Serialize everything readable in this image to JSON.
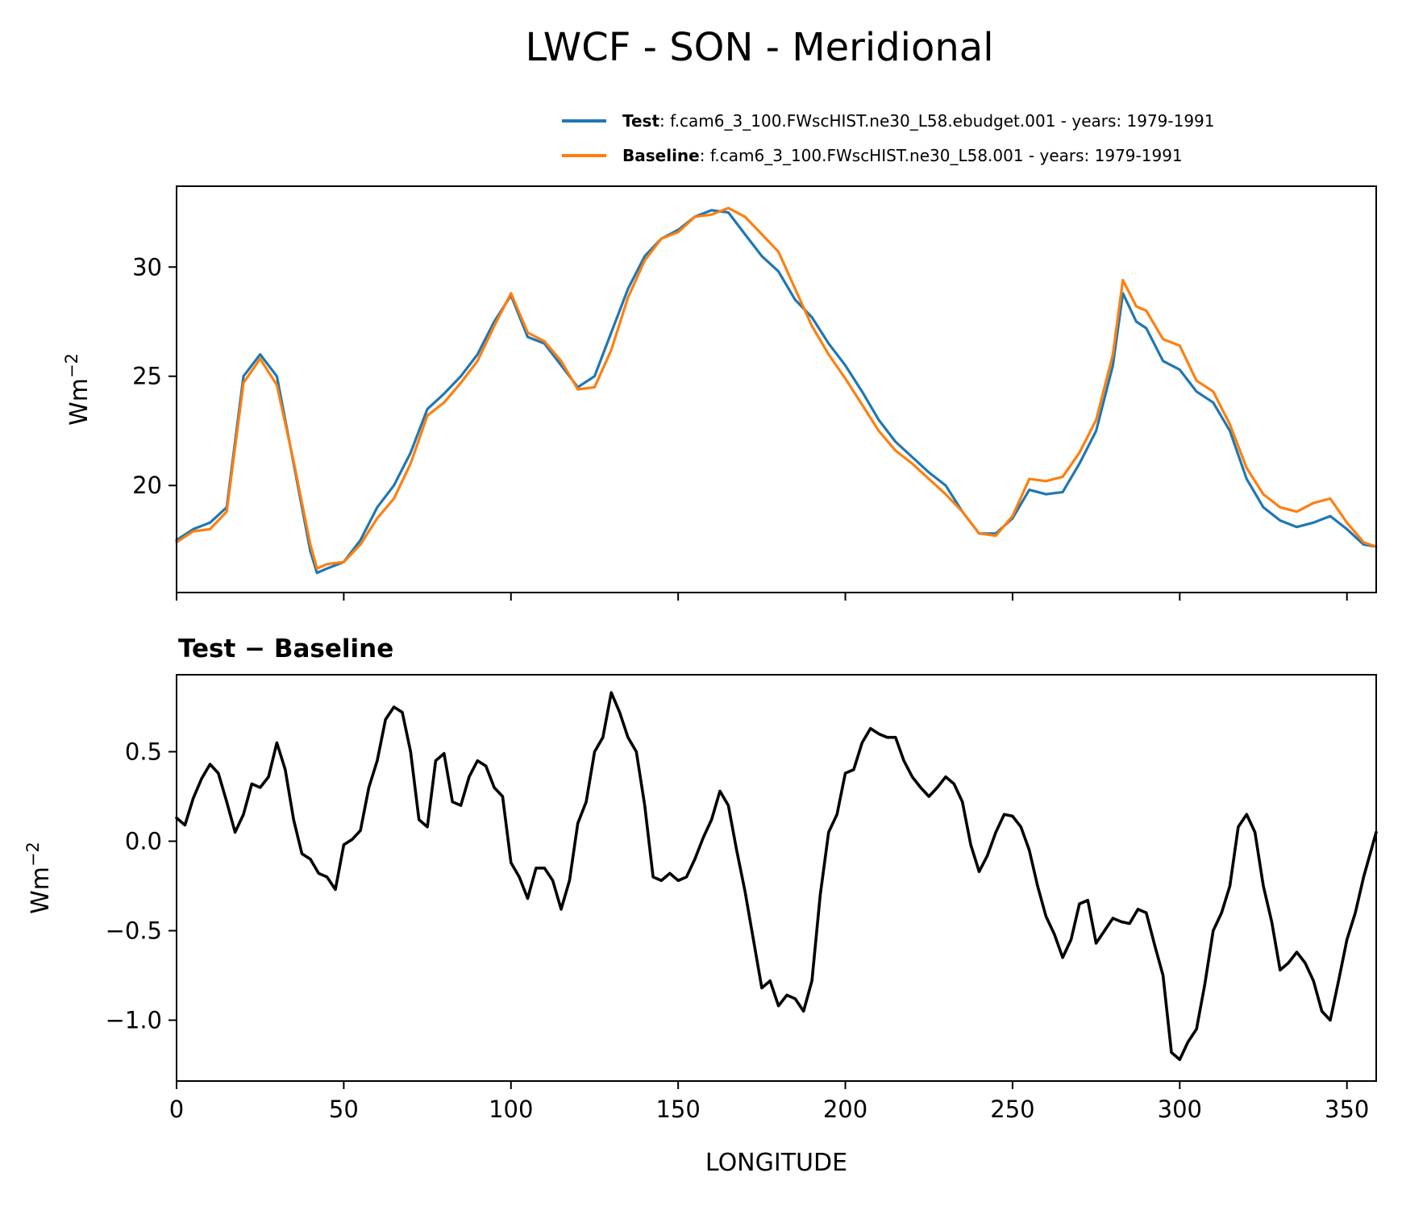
{
  "chart_data": [
    {
      "type": "line",
      "title": "LWCF - SON - Meridional",
      "xlabel": "",
      "ylabel": "Wm^-2",
      "xlim": [
        0,
        358.75
      ],
      "ylim": [
        15.1,
        33.7
      ],
      "yticks": [
        20,
        25,
        30
      ],
      "ytick_labels": [
        "20",
        "25",
        "30"
      ],
      "xticks": [
        0,
        50,
        100,
        150,
        200,
        250,
        300,
        350
      ],
      "xtick_labels_visible": false,
      "grid": false,
      "legend": {
        "placement": "top-right (above axes)",
        "entries": [
          {
            "name": "Test",
            "description": ": f.cam6_3_100.FWscHIST.ne30_L58.ebudget.001 - years: 1979-1991",
            "color": "#1f77b4"
          },
          {
            "name": "Baseline",
            "description": ": f.cam6_3_100.FWscHIST.ne30_L58.001 - years: 1979-1991",
            "color": "#ff7f0e"
          }
        ]
      },
      "x": [
        0,
        5,
        10,
        15,
        20,
        25,
        30,
        35,
        40,
        42,
        45,
        50,
        55,
        60,
        65,
        70,
        75,
        80,
        85,
        90,
        95,
        100,
        105,
        110,
        115,
        120,
        125,
        130,
        135,
        140,
        145,
        150,
        155,
        160,
        165,
        170,
        175,
        180,
        185,
        190,
        195,
        200,
        205,
        210,
        215,
        220,
        225,
        230,
        235,
        240,
        245,
        250,
        255,
        260,
        265,
        270,
        275,
        280,
        283,
        287,
        290,
        295,
        300,
        305,
        310,
        315,
        320,
        325,
        330,
        335,
        340,
        345,
        350,
        355,
        358.75
      ],
      "series": [
        {
          "name": "Test",
          "color": "#1f77b4",
          "values": [
            17.5,
            18.0,
            18.3,
            19.0,
            25.0,
            26.0,
            25.0,
            21.0,
            17.0,
            16.0,
            16.2,
            16.5,
            17.5,
            19.0,
            20.0,
            21.5,
            23.5,
            24.2,
            25.0,
            26.0,
            27.5,
            28.7,
            26.8,
            26.5,
            25.5,
            24.5,
            25.0,
            27.0,
            29.0,
            30.5,
            31.3,
            31.7,
            32.3,
            32.6,
            32.5,
            31.5,
            30.5,
            29.8,
            28.5,
            27.7,
            26.5,
            25.5,
            24.3,
            23.0,
            22.0,
            21.3,
            20.6,
            20.0,
            18.8,
            17.8,
            17.8,
            18.5,
            19.8,
            19.6,
            19.7,
            21.0,
            22.5,
            25.5,
            28.8,
            27.5,
            27.2,
            25.7,
            25.3,
            24.3,
            23.8,
            22.5,
            20.3,
            19.0,
            18.4,
            18.1,
            18.3,
            18.6,
            18.0,
            17.3,
            17.2
          ]
        },
        {
          "name": "Baseline",
          "color": "#ff7f0e",
          "values": [
            17.4,
            17.9,
            18.0,
            18.8,
            24.7,
            25.8,
            24.6,
            21.1,
            17.3,
            16.2,
            16.4,
            16.5,
            17.3,
            18.5,
            19.4,
            21.0,
            23.2,
            23.8,
            24.7,
            25.7,
            27.3,
            28.8,
            27.0,
            26.6,
            25.7,
            24.4,
            24.5,
            26.2,
            28.6,
            30.3,
            31.3,
            31.6,
            32.3,
            32.4,
            32.7,
            32.3,
            31.5,
            30.7,
            29.0,
            27.3,
            26.0,
            24.9,
            23.7,
            22.5,
            21.6,
            21.0,
            20.3,
            19.6,
            18.8,
            17.8,
            17.7,
            18.6,
            20.3,
            20.2,
            20.4,
            21.5,
            23.0,
            26.0,
            29.4,
            28.2,
            28.0,
            26.7,
            26.4,
            24.8,
            24.3,
            22.8,
            20.8,
            19.6,
            19.0,
            18.8,
            19.2,
            19.4,
            18.3,
            17.4,
            17.2
          ]
        }
      ]
    },
    {
      "type": "line",
      "title": "Test − Baseline",
      "xlabel": "LONGITUDE",
      "ylabel": "Wm^-2",
      "xlim": [
        0,
        358.75
      ],
      "ylim": [
        -1.34,
        0.93
      ],
      "yticks": [
        -1.0,
        -0.5,
        0.0,
        0.5
      ],
      "ytick_labels": [
        "−1.0",
        "−0.5",
        "0.0",
        "0.5"
      ],
      "xticks": [
        0,
        50,
        100,
        150,
        200,
        250,
        300,
        350
      ],
      "xtick_labels": [
        "0",
        "50",
        "100",
        "150",
        "200",
        "250",
        "300",
        "350"
      ],
      "grid": false,
      "x": [
        0,
        2.5,
        5,
        7.5,
        10,
        12.5,
        15,
        17.5,
        20,
        22.5,
        25,
        27.5,
        30,
        32.5,
        35,
        37.5,
        40,
        42.5,
        45,
        47.5,
        50,
        52.5,
        55,
        57.5,
        60,
        62.5,
        65,
        67.5,
        70,
        72.5,
        75,
        77.5,
        80,
        82.5,
        85,
        87.5,
        90,
        92.5,
        95,
        97.5,
        100,
        102.5,
        105,
        107.5,
        110,
        112.5,
        115,
        117.5,
        120,
        122.5,
        125,
        127.5,
        130,
        132.5,
        135,
        137.5,
        140,
        142.5,
        145,
        147.5,
        150,
        152.5,
        155,
        157.5,
        160,
        162.5,
        165,
        167.5,
        170,
        172.5,
        175,
        177.5,
        180,
        182.5,
        185,
        187.5,
        190,
        192.5,
        195,
        197.5,
        200,
        202.5,
        205,
        207.5,
        210,
        212.5,
        215,
        217.5,
        220,
        222.5,
        225,
        227.5,
        230,
        232.5,
        235,
        237.5,
        240,
        242.5,
        245,
        247.5,
        250,
        252.5,
        255,
        257.5,
        260,
        262.5,
        265,
        267.5,
        270,
        272.5,
        275,
        277.5,
        280,
        282.5,
        285,
        287.5,
        290,
        292.5,
        295,
        297.5,
        300,
        302.5,
        305,
        307.5,
        310,
        312.5,
        315,
        317.5,
        320,
        322.5,
        325,
        327.5,
        330,
        332.5,
        335,
        337.5,
        340,
        342.5,
        345,
        347.5,
        350,
        352.5,
        355,
        358.75
      ],
      "series": [
        {
          "name": "Test − Baseline",
          "color": "#000000",
          "values": [
            0.13,
            0.09,
            0.24,
            0.35,
            0.43,
            0.38,
            0.22,
            0.05,
            0.15,
            0.32,
            0.3,
            0.36,
            0.55,
            0.4,
            0.12,
            -0.07,
            -0.1,
            -0.18,
            -0.2,
            -0.27,
            -0.02,
            0.01,
            0.06,
            0.3,
            0.45,
            0.68,
            0.75,
            0.72,
            0.5,
            0.12,
            0.08,
            0.45,
            0.49,
            0.22,
            0.2,
            0.36,
            0.45,
            0.42,
            0.3,
            0.25,
            -0.12,
            -0.2,
            -0.32,
            -0.15,
            -0.15,
            -0.22,
            -0.38,
            -0.22,
            0.1,
            0.22,
            0.5,
            0.58,
            0.83,
            0.72,
            0.58,
            0.5,
            0.2,
            -0.2,
            -0.22,
            -0.18,
            -0.22,
            -0.2,
            -0.1,
            0.02,
            0.12,
            0.28,
            0.2,
            -0.05,
            -0.28,
            -0.55,
            -0.82,
            -0.78,
            -0.92,
            -0.86,
            -0.88,
            -0.95,
            -0.78,
            -0.3,
            0.05,
            0.15,
            0.38,
            0.4,
            0.55,
            0.63,
            0.6,
            0.58,
            0.58,
            0.45,
            0.36,
            0.3,
            0.25,
            0.3,
            0.36,
            0.32,
            0.22,
            -0.02,
            -0.17,
            -0.08,
            0.05,
            0.15,
            0.14,
            0.08,
            -0.05,
            -0.25,
            -0.42,
            -0.52,
            -0.65,
            -0.55,
            -0.35,
            -0.33,
            -0.57,
            -0.5,
            -0.43,
            -0.45,
            -0.46,
            -0.38,
            -0.4,
            -0.58,
            -0.75,
            -1.18,
            -1.22,
            -1.12,
            -1.05,
            -0.8,
            -0.5,
            -0.4,
            -0.25,
            0.08,
            0.15,
            0.05,
            -0.25,
            -0.45,
            -0.72,
            -0.68,
            -0.62,
            -0.68,
            -0.78,
            -0.95,
            -1.0,
            -0.78,
            -0.55,
            -0.4,
            -0.2,
            0.05,
            0.15
          ]
        }
      ]
    }
  ],
  "figure": {
    "title": "LWCF - SON - Meridional",
    "top_panel": {
      "ylabel_base": "Wm",
      "ylabel_exp": "−2",
      "legend": [
        {
          "label": "Test",
          "text": ": f.cam6_3_100.FWscHIST.ne30_L58.ebudget.001 - years: 1979-1991"
        },
        {
          "label": "Baseline",
          "text": ": f.cam6_3_100.FWscHIST.ne30_L58.001 - years: 1979-1991"
        }
      ]
    },
    "bottom_panel": {
      "title": "Test − Baseline",
      "ylabel_base": "Wm",
      "ylabel_exp": "−2",
      "xlabel": "LONGITUDE"
    }
  }
}
